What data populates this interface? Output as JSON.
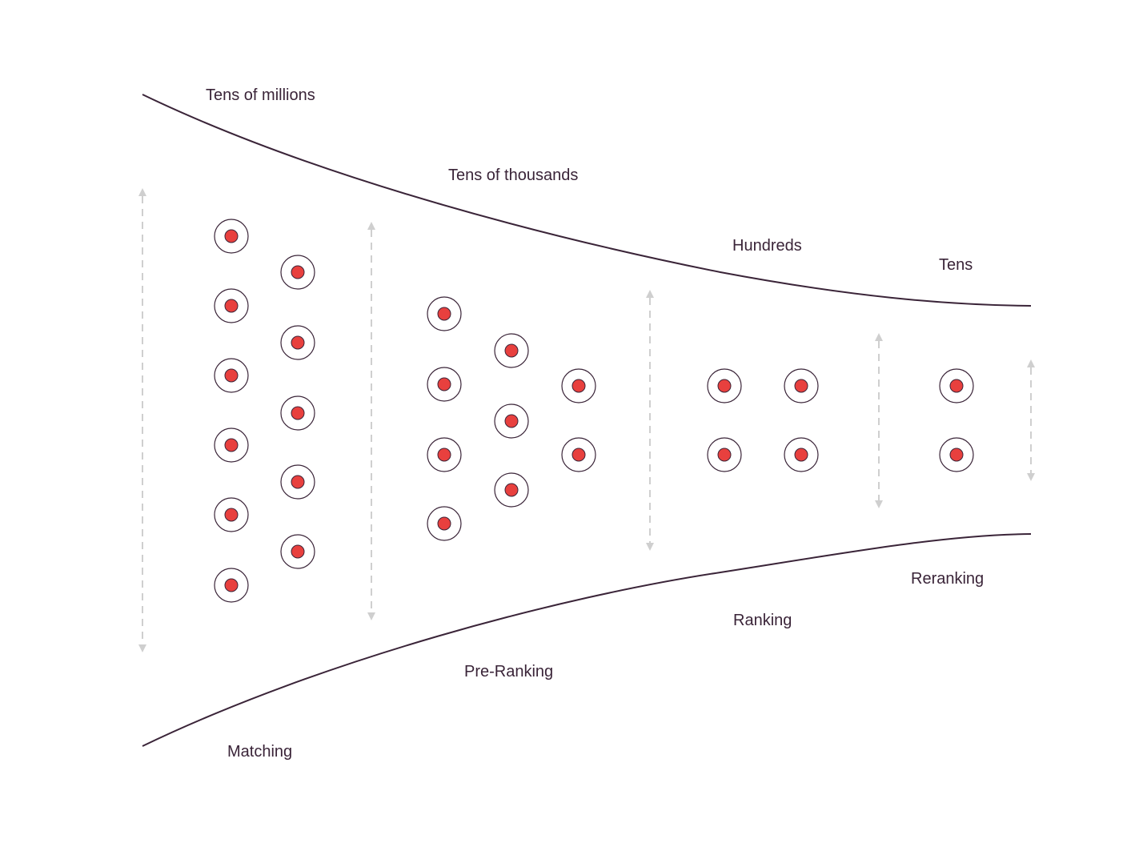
{
  "volume_labels": [
    "Tens of millions",
    "Tens of thousands",
    "Hundreds",
    "Tens"
  ],
  "stage_labels": [
    "Matching",
    "Pre-Ranking",
    "Ranking",
    "Reranking"
  ],
  "colors": {
    "curve": "#3a2438",
    "dot": "#e8403e",
    "arrow": "#cfcfcf",
    "text": "#3a2438"
  },
  "icons": {
    "candidate": "target-dot-icon",
    "range": "double-headed-dashed-arrow-icon"
  }
}
